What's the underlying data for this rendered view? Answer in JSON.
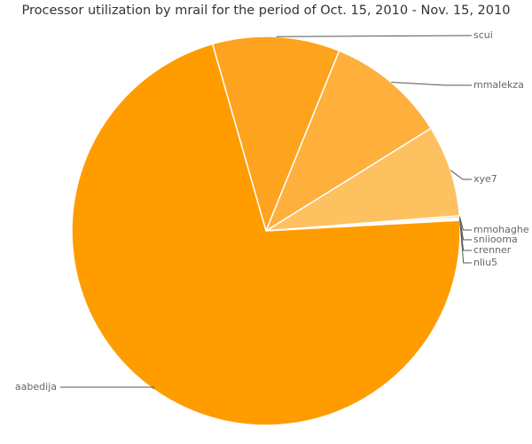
{
  "chart_data": {
    "type": "pie",
    "title": "Processor utilization by mrail for the period of Oct. 15, 2010 - Nov. 15, 2010",
    "labels": [
      "scui",
      "mmalekza",
      "xye7",
      "mmohaghe",
      "sniiooma",
      "crenner",
      "nliu5",
      "aabedija"
    ],
    "values": [
      10.6,
      10.0,
      7.6,
      0.15,
      0.1,
      0.08,
      0.05,
      71.42
    ],
    "colors": [
      "#fea31d",
      "#feaf3c",
      "#fec15f",
      "#f99a00",
      "#f99a00",
      "#f99a00",
      "#f99a00",
      "#fe9c00"
    ]
  }
}
